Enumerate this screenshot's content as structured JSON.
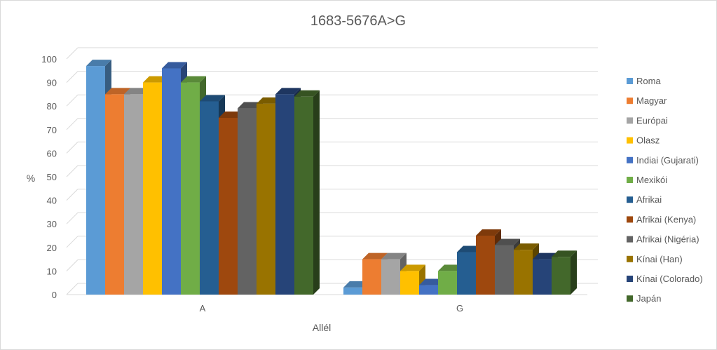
{
  "chart_data": {
    "type": "bar",
    "title": "1683-5676A>G",
    "xlabel": "Allél",
    "ylabel": "%",
    "ylim": [
      0,
      100
    ],
    "yticks": [
      0,
      10,
      20,
      30,
      40,
      50,
      60,
      70,
      80,
      90,
      100
    ],
    "grid": true,
    "legend_position": "right",
    "categories": [
      "A",
      "G"
    ],
    "series": [
      {
        "name": "Roma",
        "color": "#5b9bd5",
        "values": [
          97,
          3
        ]
      },
      {
        "name": "Magyar",
        "color": "#ed7d31",
        "values": [
          85,
          15
        ]
      },
      {
        "name": "Európai",
        "color": "#a5a5a5",
        "values": [
          85,
          15
        ]
      },
      {
        "name": "Olasz",
        "color": "#ffc000",
        "values": [
          90,
          10
        ]
      },
      {
        "name": "Indiai (Gujarati)",
        "color": "#4472c4",
        "values": [
          96,
          4
        ]
      },
      {
        "name": "Mexikói",
        "color": "#70ad47",
        "values": [
          90,
          10
        ]
      },
      {
        "name": "Afrikai",
        "color": "#255e91",
        "values": [
          82,
          18
        ]
      },
      {
        "name": "Afrikai (Kenya)",
        "color": "#9e480e",
        "values": [
          75,
          25
        ]
      },
      {
        "name": "Afrikai (Nigéria)",
        "color": "#636363",
        "values": [
          79,
          21
        ]
      },
      {
        "name": "Kínai (Han)",
        "color": "#997300",
        "values": [
          81,
          19
        ]
      },
      {
        "name": "Kínai (Colorado)",
        "color": "#264478",
        "values": [
          85,
          15
        ]
      },
      {
        "name": "Japán",
        "color": "#43682b",
        "values": [
          84,
          16
        ]
      }
    ]
  }
}
